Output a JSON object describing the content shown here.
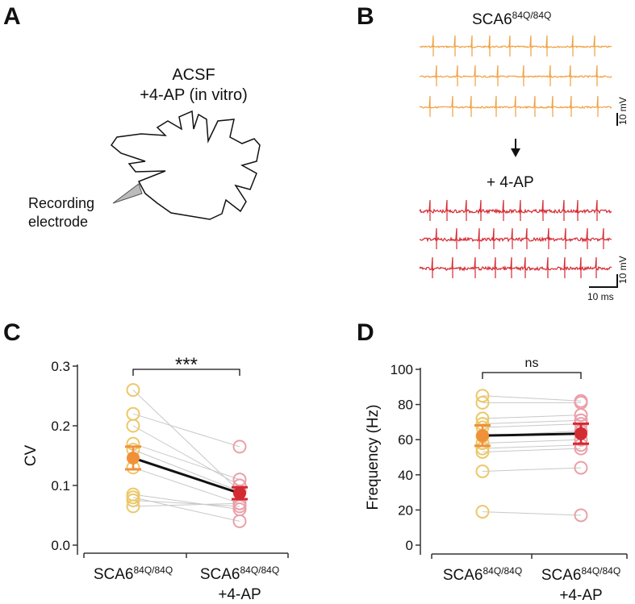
{
  "panels": {
    "a": {
      "label": "A",
      "title_line1": "ACSF",
      "title_line2": "+4-AP (in vitro)",
      "electrode_line1": "Recording",
      "electrode_line2": "electrode"
    },
    "b": {
      "label": "B",
      "top_title": "SCA6",
      "top_title_sup": "84Q/84Q",
      "bottom_title": "+ 4-AP",
      "scale_v_top": "10 mV",
      "scale_v_bottom": "10 mV",
      "scale_t": "10 ms",
      "colors": {
        "before": "#f0a040",
        "after": "#d42a32"
      }
    },
    "c": {
      "label": "C"
    },
    "d": {
      "label": "D"
    }
  },
  "chart_data": [
    {
      "type": "scatter",
      "panel": "C",
      "ylabel": "CV",
      "ylim": [
        0,
        0.3
      ],
      "yticks": [
        "0.0",
        "0.1",
        "0.2",
        "0.3"
      ],
      "categories": [
        {
          "main": "SCA6",
          "sup": "84Q/84Q",
          "line2": ""
        },
        {
          "main": "SCA6",
          "sup": "84Q/84Q",
          "line2": "+4-AP"
        }
      ],
      "significance": "***",
      "pairs": [
        [
          0.26,
          0.09
        ],
        [
          0.22,
          0.165
        ],
        [
          0.2,
          0.1
        ],
        [
          0.17,
          0.11
        ],
        [
          0.16,
          0.09
        ],
        [
          0.13,
          0.07
        ],
        [
          0.085,
          0.06
        ],
        [
          0.08,
          0.04
        ],
        [
          0.075,
          0.065
        ],
        [
          0.065,
          0.07
        ]
      ],
      "mean": [
        0.146,
        0.087
      ],
      "sem": [
        0.019,
        0.01
      ],
      "colors": {
        "before_points": "#ecc86a",
        "after_points": "#eaa0a8",
        "before_mean": "#f0913a",
        "after_mean": "#d42a32"
      }
    },
    {
      "type": "scatter",
      "panel": "D",
      "ylabel": "Frequency (Hz)",
      "ylim": [
        0,
        100
      ],
      "yticks": [
        "0",
        "20",
        "40",
        "60",
        "80",
        "100"
      ],
      "categories": [
        {
          "main": "SCA6",
          "sup": "84Q/84Q",
          "line2": ""
        },
        {
          "main": "SCA6",
          "sup": "84Q/84Q",
          "line2": "+4-AP"
        }
      ],
      "significance": "ns",
      "pairs": [
        [
          85,
          82
        ],
        [
          81,
          81
        ],
        [
          72,
          74
        ],
        [
          69,
          71
        ],
        [
          67,
          69
        ],
        [
          62,
          65
        ],
        [
          58,
          60
        ],
        [
          55,
          57
        ],
        [
          53,
          55
        ],
        [
          42,
          44
        ],
        [
          19,
          17
        ]
      ],
      "mean": [
        62.3,
        63.4
      ],
      "sem": [
        5.8,
        5.7
      ],
      "colors": {
        "before_points": "#ecc86a",
        "after_points": "#eaa0a8",
        "before_mean": "#f0913a",
        "after_mean": "#d42a32"
      }
    }
  ]
}
